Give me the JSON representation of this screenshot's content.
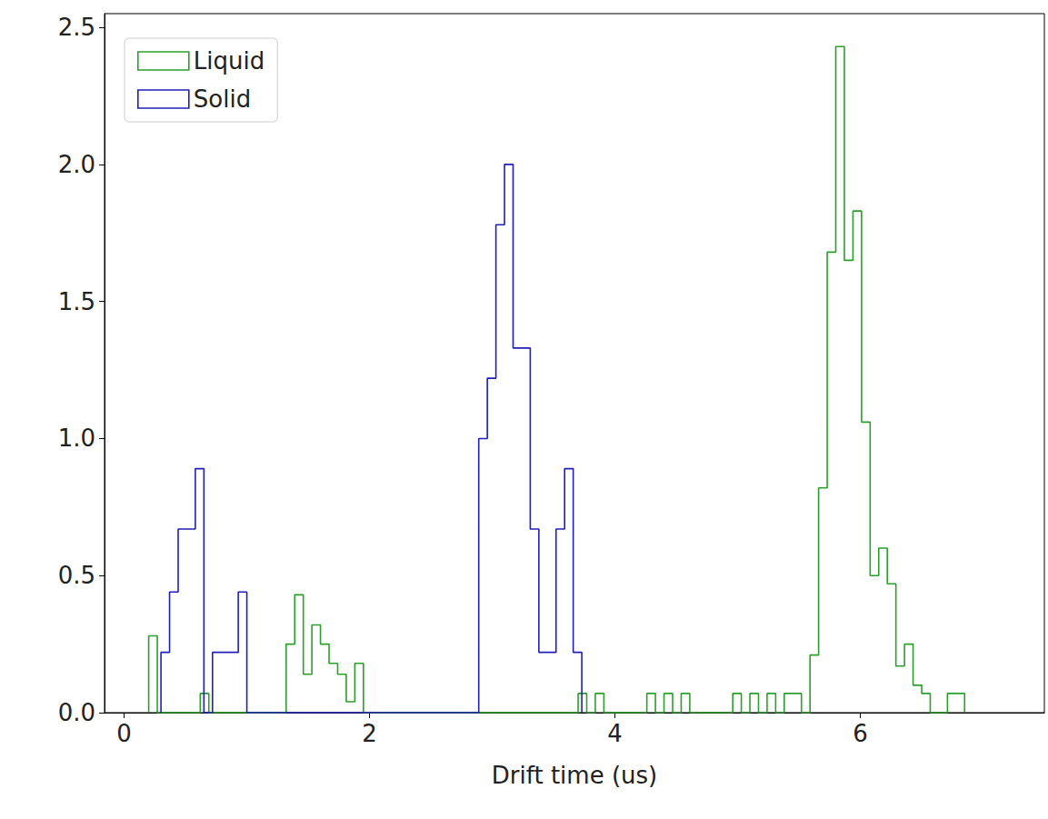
{
  "chart_data": {
    "type": "histogram",
    "xlabel": "Drift time (us)",
    "xlim": [
      -0.16,
      7.5
    ],
    "ylim": [
      0,
      2.55
    ],
    "xticks": [
      0,
      2,
      4,
      6
    ],
    "yticks": [
      {
        "value": 0,
        "label": "0.0"
      },
      0.5,
      {
        "value": 1,
        "label": "1.0"
      },
      1.5,
      {
        "value": 2,
        "label": "2.0"
      },
      2.5
    ],
    "legend": "upper left",
    "series": [
      {
        "name": "Liquid",
        "color": "#2ca02c",
        "bins": [
          0.2,
          0.27,
          0.34,
          0.41,
          0.48,
          0.55,
          0.62,
          0.69,
          0.76,
          0.83,
          0.9,
          0.97,
          1.04,
          1.11,
          1.18,
          1.25,
          1.32,
          1.39,
          1.46,
          1.53,
          1.6,
          1.67,
          1.74,
          1.81,
          1.88,
          1.95,
          2.02,
          2.09,
          2.16,
          2.23,
          2.3,
          2.37,
          2.44,
          2.51,
          2.58,
          2.65,
          2.72,
          2.79,
          2.86,
          2.93,
          3.0,
          3.07,
          3.14,
          3.21,
          3.28,
          3.35,
          3.42,
          3.49,
          3.56,
          3.63,
          3.7,
          3.77,
          3.84,
          3.91,
          3.98,
          4.05,
          4.12,
          4.19,
          4.26,
          4.33,
          4.4,
          4.47,
          4.54,
          4.61,
          4.68,
          4.75,
          4.82,
          4.89,
          4.96,
          5.03,
          5.1,
          5.17,
          5.24,
          5.31,
          5.38,
          5.45,
          5.52,
          5.59,
          5.66,
          5.73,
          5.8,
          5.87,
          5.94,
          6.01,
          6.08,
          6.15,
          6.22,
          6.29,
          6.36,
          6.43,
          6.5,
          6.57,
          6.64,
          6.71,
          6.78,
          6.85
        ],
        "values": [
          0.28,
          0,
          0,
          0,
          0,
          0,
          0.07,
          0,
          0,
          0,
          0,
          0,
          0,
          0,
          0,
          0,
          0.25,
          0.43,
          0.14,
          0.32,
          0.25,
          0.18,
          0.14,
          0.04,
          0.18,
          0,
          0,
          0,
          0,
          0,
          0,
          0,
          0,
          0,
          0,
          0,
          0,
          0,
          0,
          0,
          0,
          0,
          0,
          0,
          0,
          0,
          0,
          0,
          0,
          0,
          0.07,
          0,
          0.07,
          0,
          0,
          0,
          0,
          0,
          0.07,
          0,
          0.07,
          0,
          0.07,
          0,
          0,
          0,
          0,
          0,
          0.07,
          0,
          0.07,
          0,
          0.07,
          0,
          0.07,
          0.07,
          0,
          0.21,
          0.82,
          1.68,
          2.43,
          1.65,
          1.83,
          1.06,
          0.5,
          0.6,
          0.47,
          0.17,
          0.25,
          0.1,
          0.07,
          0,
          0,
          0.07,
          0.07
        ]
      },
      {
        "name": "Solid",
        "color": "#2020b8",
        "bins": [
          0.3,
          0.37,
          0.44,
          0.51,
          0.58,
          0.65,
          0.72,
          0.79,
          0.86,
          0.93,
          1.0,
          1.07,
          1.14,
          1.21,
          1.28,
          1.35,
          1.42,
          1.49,
          1.56,
          1.63,
          1.7,
          1.77,
          1.84,
          1.91,
          1.98,
          2.05,
          2.12,
          2.19,
          2.26,
          2.33,
          2.4,
          2.47,
          2.54,
          2.61,
          2.68,
          2.75,
          2.82,
          2.89,
          2.96,
          3.03,
          3.1,
          3.17,
          3.24,
          3.31,
          3.38,
          3.45,
          3.52,
          3.59,
          3.66,
          3.73
        ],
        "values": [
          0.22,
          0.44,
          0.67,
          0.67,
          0.89,
          0,
          0.22,
          0.22,
          0.22,
          0.44,
          0,
          0,
          0,
          0,
          0,
          0,
          0,
          0,
          0,
          0,
          0,
          0,
          0,
          0,
          0,
          0,
          0,
          0,
          0,
          0,
          0,
          0,
          0,
          0,
          0,
          0,
          0,
          1.0,
          1.22,
          1.78,
          2.0,
          1.33,
          1.33,
          0.67,
          0.22,
          0.22,
          0.67,
          0.89,
          0.22
        ]
      }
    ]
  }
}
